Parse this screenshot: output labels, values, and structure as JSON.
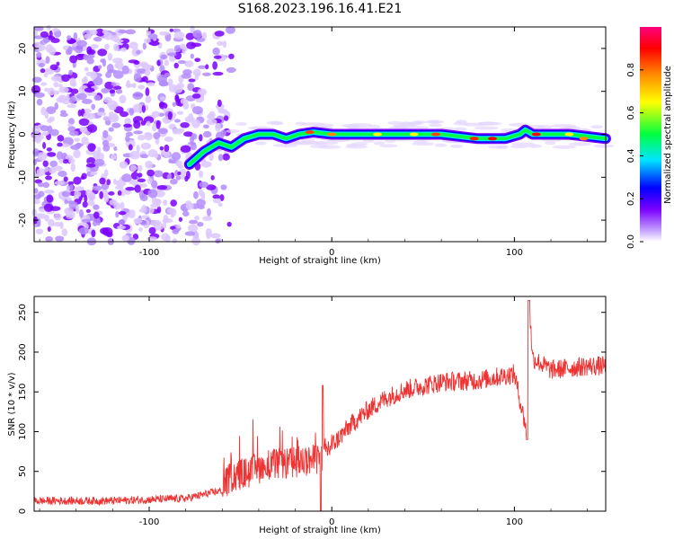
{
  "title": "S168.2023.196.16.41.E21",
  "chart_data": [
    {
      "type": "heatmap",
      "xlabel": "Height of straight line (km)",
      "ylabel": "Frequency (Hz)",
      "xlim": [
        -163,
        150
      ],
      "ylim": [
        -25,
        25
      ],
      "x_ticks": [
        -100,
        0,
        100
      ],
      "y_ticks": [
        -20,
        -10,
        0,
        10,
        20
      ],
      "colorbar": {
        "label": "Normalized spectral amplitude",
        "range": [
          0.0,
          1.0
        ],
        "ticks": [
          "0.0",
          "0.2",
          "0.4",
          "0.6",
          "0.8"
        ],
        "colormap": [
          "#ffffff",
          "#7a00ff",
          "#0000ff",
          "#00e5ff",
          "#00ff40",
          "#ffff00",
          "#ff8800",
          "#ff0000",
          "#ff0080"
        ]
      },
      "signal_ridge": {
        "description_values_x_km": [
          -78,
          -70,
          -62,
          -55,
          -48,
          -40,
          -32,
          -25,
          -18,
          -10,
          0,
          20,
          40,
          60,
          80,
          95,
          103,
          106,
          110,
          130,
          150
        ],
        "frequency_hz": [
          -7,
          -4,
          -2,
          -3,
          -1,
          0,
          0,
          -1,
          0,
          0.5,
          0,
          0,
          0,
          0,
          -1,
          -1,
          0,
          1,
          0,
          0,
          -1
        ]
      },
      "noise_region_x_km": [
        -163,
        -55
      ]
    },
    {
      "type": "line",
      "xlabel": "Height of straight line (km)",
      "ylabel": "SNR (10 * v/v)",
      "xlim": [
        -163,
        150
      ],
      "ylim": [
        0,
        270
      ],
      "x_ticks": [
        -100,
        0,
        100
      ],
      "y_ticks": [
        0,
        50,
        100,
        150,
        200,
        250
      ],
      "line_color": "#ee3333",
      "envelope": {
        "x": [
          -163,
          -120,
          -80,
          -60,
          -55,
          -45,
          -35,
          -25,
          -15,
          -10,
          -5,
          0,
          10,
          20,
          30,
          40,
          60,
          80,
          100,
          107,
          108,
          110,
          120,
          140,
          150
        ],
        "y": [
          12,
          12,
          15,
          25,
          40,
          45,
          55,
          55,
          60,
          60,
          65,
          80,
          105,
          125,
          140,
          150,
          160,
          162,
          170,
          95,
          260,
          190,
          175,
          180,
          180
        ]
      }
    }
  ]
}
